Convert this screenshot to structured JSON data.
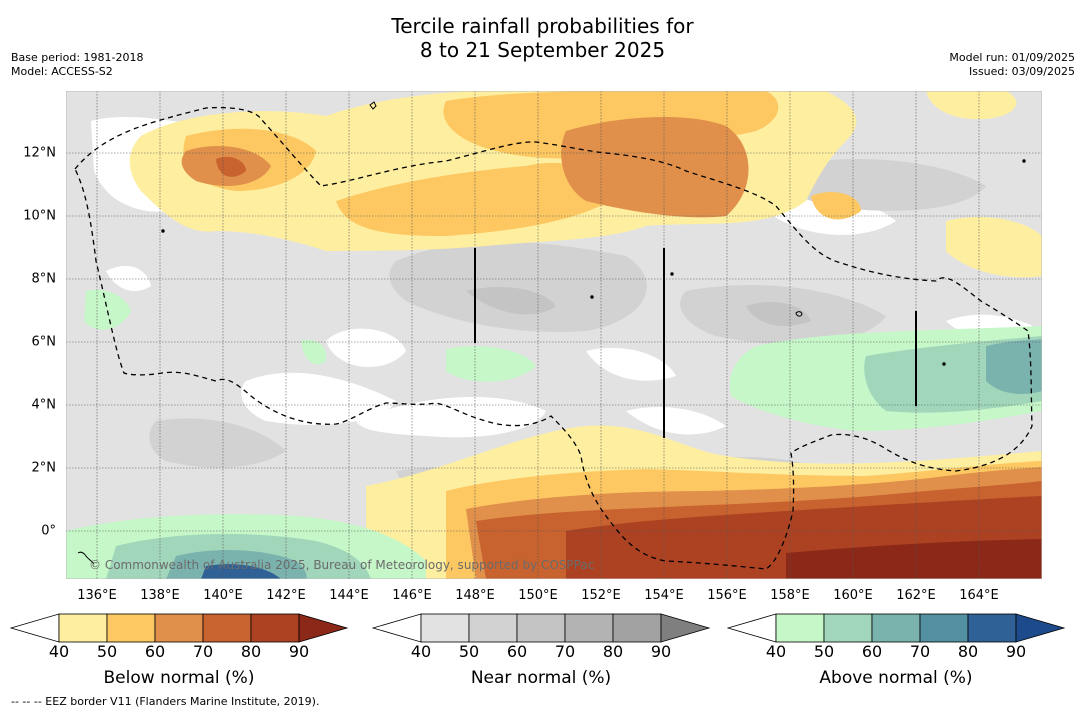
{
  "title": {
    "line1": "Tercile rainfall probabilities for",
    "line2": "8 to 21 September 2025"
  },
  "meta": {
    "base_period": "Base period: 1981-2018",
    "model": "Model: ACCESS-S2",
    "model_run": "Model run: 01/09/2025",
    "issued": "Issued: 03/09/2025"
  },
  "map": {
    "lon_ticks": [
      "136°E",
      "138°E",
      "140°E",
      "142°E",
      "144°E",
      "146°E",
      "148°E",
      "150°E",
      "152°E",
      "154°E",
      "156°E",
      "158°E",
      "160°E",
      "162°E",
      "164°E"
    ],
    "lat_ticks": [
      "12°N",
      "10°N",
      "8°N",
      "6°N",
      "4°N",
      "2°N",
      "0°"
    ],
    "copyright": "© Commonwealth of Australia 2025, Bureau of Meteorology, supported by COSPPac"
  },
  "colorbars": {
    "ticks": [
      "40",
      "50",
      "60",
      "70",
      "80",
      "90"
    ],
    "below": {
      "label": "Below normal (%)",
      "colors": [
        "#ffffff",
        "#fdeea0",
        "#fdc862",
        "#e0904a",
        "#c8622f",
        "#ac4222",
        "#8b2818"
      ]
    },
    "near": {
      "label": "Near normal (%)",
      "colors": [
        "#ffffff",
        "#e2e2e2",
        "#d2d2d2",
        "#c4c4c4",
        "#b3b3b3",
        "#a2a2a2",
        "#7f7f7f"
      ]
    },
    "above": {
      "label": "Above normal (%)",
      "colors": [
        "#ffffff",
        "#c6f7c8",
        "#a1d6ba",
        "#7ab3ae",
        "#5390a2",
        "#2f6096",
        "#1d4a8a"
      ]
    }
  },
  "footnote": "--  --  -- EEZ border V11 (Flanders Marine Institute, 2019)."
}
